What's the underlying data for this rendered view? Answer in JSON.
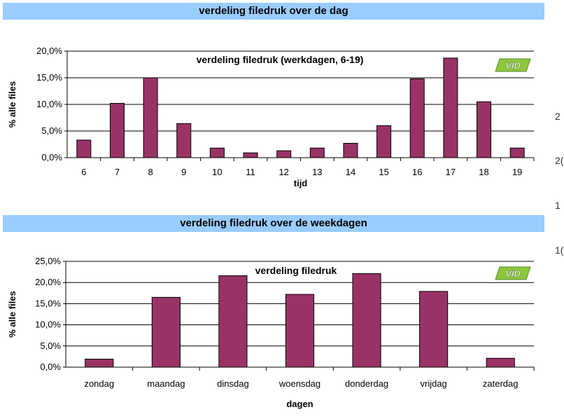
{
  "sections": {
    "top": "verdeling filedruk over de dag",
    "bottom": "verdeling filedruk over de weekdagen"
  },
  "logo": {
    "text": "VID",
    "color": "#8dc63f"
  },
  "right_edge_fragments": [
    "2",
    "2(",
    "1",
    "1("
  ],
  "colors": {
    "bar": "#993366",
    "banner": "#99ccff"
  },
  "chart_data": [
    {
      "type": "bar",
      "title": "verdeling filedruk (werkdagen, 6-19)",
      "xlabel": "tijd",
      "ylabel": "% alle files",
      "categories": [
        "6",
        "7",
        "8",
        "9",
        "10",
        "11",
        "12",
        "13",
        "14",
        "15",
        "16",
        "17",
        "18",
        "19"
      ],
      "values": [
        3.3,
        10.2,
        15.0,
        6.4,
        1.8,
        0.9,
        1.3,
        1.8,
        2.7,
        6.0,
        14.8,
        18.7,
        10.5,
        1.8
      ],
      "ylim": [
        0,
        20
      ],
      "yticks": [
        "0,0%",
        "5,0%",
        "10,0%",
        "15,0%",
        "20,0%"
      ],
      "grid": true
    },
    {
      "type": "bar",
      "title": "verdeling filedruk",
      "xlabel": "dagen",
      "ylabel": "% alle files",
      "categories": [
        "zondag",
        "maandag",
        "dinsdag",
        "woensdag",
        "donderdag",
        "vrijdag",
        "zaterdag"
      ],
      "values": [
        1.9,
        16.5,
        21.6,
        17.2,
        22.1,
        17.9,
        2.1
      ],
      "ylim": [
        0,
        25
      ],
      "yticks": [
        "0,0%",
        "5,0%",
        "10,0%",
        "15,0%",
        "20,0%",
        "25,0%"
      ],
      "grid": true
    }
  ]
}
